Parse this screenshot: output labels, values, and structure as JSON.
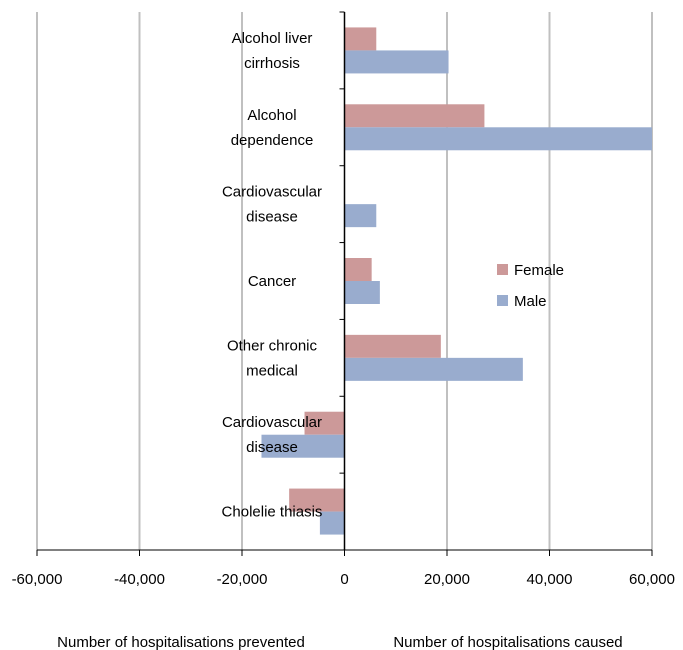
{
  "chart_data": {
    "type": "bar",
    "orientation": "horizontal",
    "categories": [
      [
        "Alcohol liver",
        "cirrhosis"
      ],
      [
        "Alcohol",
        "dependence"
      ],
      [
        "Cardiovascular",
        "disease"
      ],
      [
        "Cancer"
      ],
      [
        "Other chronic",
        "medical"
      ],
      [
        "Cardiovascular",
        "disease"
      ],
      [
        "Cholelie thiasis"
      ]
    ],
    "series": [
      {
        "name": "Female",
        "color": "#cc9999",
        "values": [
          6200,
          27300,
          0,
          5300,
          18800,
          -7800,
          -10800
        ]
      },
      {
        "name": "Male",
        "color": "#99acce",
        "values": [
          20300,
          60000,
          6200,
          6900,
          34800,
          -16200,
          -4800
        ]
      }
    ],
    "xlim": [
      -60000,
      60000
    ],
    "xticks": [
      -60000,
      -40000,
      -20000,
      0,
      20000,
      40000,
      60000
    ],
    "xtick_labels": [
      "-60,000",
      "-40,000",
      "-20,000",
      "0",
      "20,000",
      "40,000",
      "60,000"
    ],
    "grid": "vertical",
    "legend_position": "right-middle",
    "xlabel_left": "Number of hospitalisations prevented",
    "xlabel_right": "Number of hospitalisations caused"
  }
}
